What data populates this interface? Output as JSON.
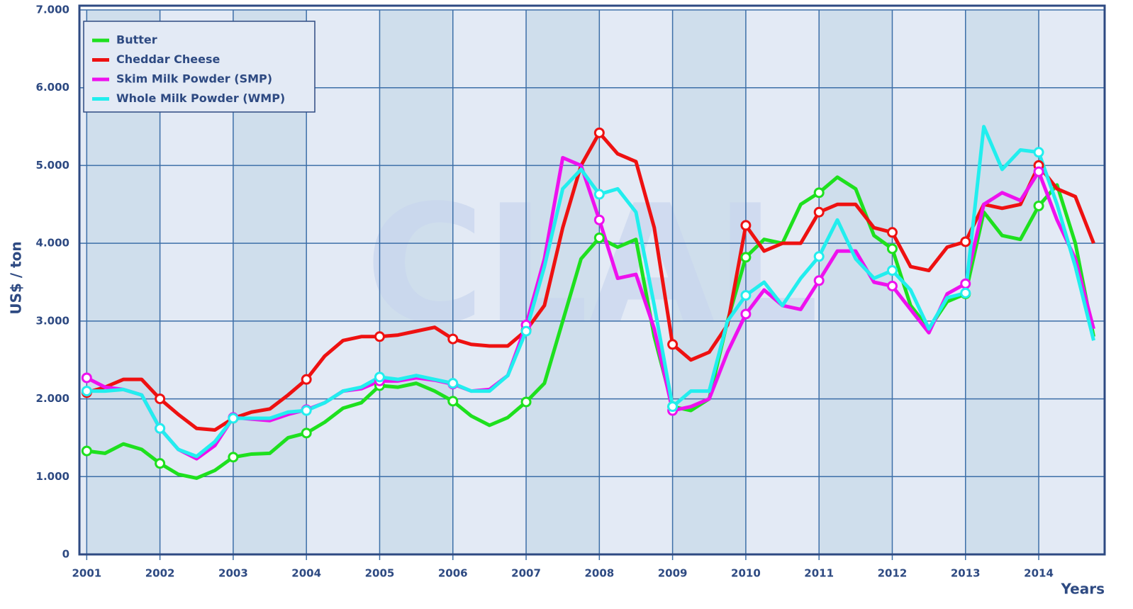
{
  "chart_data": {
    "type": "line",
    "y_label": "US$ / ton",
    "x_label": "Years",
    "watermark": "CLAL",
    "xlim": [
      2000.9,
      2014.9
    ],
    "ylim": [
      0,
      7000
    ],
    "xticks": [
      2001,
      2002,
      2003,
      2004,
      2005,
      2006,
      2007,
      2008,
      2009,
      2010,
      2011,
      2012,
      2013,
      2014
    ],
    "yticks": [
      0,
      {
        "value": 1000,
        "label": "1.000"
      },
      {
        "value": 2000,
        "label": "2.000"
      },
      {
        "value": 3000,
        "label": "3.000"
      },
      {
        "value": 4000,
        "label": "4.000"
      },
      {
        "value": 5000,
        "label": "5.000"
      },
      {
        "value": 6000,
        "label": "6.000"
      },
      {
        "value": 7000,
        "label": "7.000"
      }
    ],
    "grid": true,
    "legend": "top-left",
    "x": [
      2001,
      2001.25,
      2001.5,
      2001.75,
      2002,
      2002.25,
      2002.5,
      2002.75,
      2003,
      2003.25,
      2003.5,
      2003.75,
      2004,
      2004.25,
      2004.5,
      2004.75,
      2005,
      2005.25,
      2005.5,
      2005.75,
      2006,
      2006.25,
      2006.5,
      2006.75,
      2007,
      2007.25,
      2007.5,
      2007.75,
      2008,
      2008.25,
      2008.5,
      2008.75,
      2009,
      2009.25,
      2009.5,
      2009.75,
      2010,
      2010.25,
      2010.5,
      2010.75,
      2011,
      2011.25,
      2011.5,
      2011.75,
      2012,
      2012.25,
      2012.5,
      2012.75,
      2013,
      2013.25,
      2013.5,
      2013.75,
      2014,
      2014.25,
      2014.5,
      2014.75
    ],
    "series": [
      {
        "name": "Butter",
        "color": "#1ee01e",
        "values": [
          1330,
          1300,
          1420,
          1350,
          1170,
          1030,
          980,
          1080,
          1250,
          1290,
          1300,
          1500,
          1560,
          1700,
          1880,
          1950,
          2170,
          2150,
          2200,
          2100,
          1970,
          1780,
          1660,
          1760,
          1960,
          2200,
          3000,
          3800,
          4070,
          3950,
          4050,
          2800,
          1900,
          1850,
          2000,
          3000,
          3820,
          4050,
          4000,
          4500,
          4650,
          4850,
          4700,
          4100,
          3930,
          3200,
          2900,
          3250,
          3350,
          4400,
          4100,
          4050,
          4480,
          4750,
          4000,
          2800
        ]
      },
      {
        "name": "Cheddar Cheese",
        "color": "#ee1111",
        "values": [
          2080,
          2150,
          2250,
          2250,
          2000,
          1800,
          1620,
          1600,
          1750,
          1830,
          1870,
          2050,
          2250,
          2550,
          2750,
          2800,
          2800,
          2820,
          2870,
          2920,
          2770,
          2700,
          2680,
          2680,
          2880,
          3200,
          4200,
          5000,
          5420,
          5150,
          5050,
          4200,
          2700,
          2500,
          2600,
          2950,
          4230,
          3900,
          4000,
          4000,
          4400,
          4500,
          4500,
          4200,
          4140,
          3700,
          3650,
          3950,
          4020,
          4500,
          4450,
          4500,
          5000,
          4700,
          4600,
          4000
        ]
      },
      {
        "name": "Skim Milk Powder (SMP)",
        "color": "#ee11ee",
        "values": [
          2270,
          2150,
          2120,
          2050,
          1620,
          1350,
          1230,
          1400,
          1760,
          1740,
          1720,
          1800,
          1860,
          1950,
          2100,
          2130,
          2230,
          2230,
          2270,
          2240,
          2190,
          2100,
          2120,
          2300,
          2950,
          3800,
          5100,
          5000,
          4300,
          3550,
          3600,
          2900,
          1850,
          1900,
          2000,
          2600,
          3090,
          3400,
          3200,
          3150,
          3520,
          3900,
          3900,
          3500,
          3450,
          3150,
          2850,
          3350,
          3480,
          4500,
          4650,
          4550,
          4920,
          4300,
          3800,
          2900
        ]
      },
      {
        "name": "Whole Milk Powder (WMP)",
        "color": "#22eeee",
        "values": [
          2100,
          2100,
          2120,
          2050,
          1620,
          1350,
          1260,
          1450,
          1750,
          1750,
          1750,
          1830,
          1850,
          1950,
          2100,
          2150,
          2280,
          2250,
          2300,
          2250,
          2200,
          2100,
          2100,
          2300,
          2870,
          3700,
          4700,
          4950,
          4630,
          4700,
          4400,
          3200,
          1900,
          2100,
          2100,
          3000,
          3330,
          3500,
          3200,
          3550,
          3830,
          4300,
          3800,
          3550,
          3650,
          3400,
          2900,
          3300,
          3360,
          5500,
          4950,
          5200,
          5170,
          4500,
          3700,
          2750
        ]
      }
    ]
  }
}
